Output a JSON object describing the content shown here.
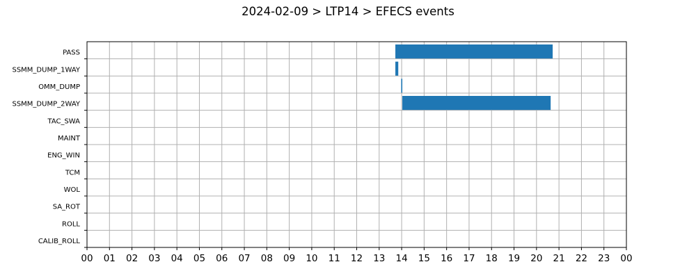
{
  "chart_data": {
    "type": "bar",
    "orientation": "horizontal-timeline",
    "title": "2024-02-09 > LTP14 > EFECS events",
    "xlabel": "",
    "ylabel": "",
    "categories": [
      "PASS",
      "SSMM_DUMP_1WAY",
      "OMM_DUMP",
      "SSMM_DUMP_2WAY",
      "TAC_SWA",
      "MAINT",
      "ENG_WIN",
      "TCM",
      "WOL",
      "SA_ROT",
      "ROLL",
      "CALIB_ROLL"
    ],
    "x_tick_labels": [
      "00",
      "01",
      "02",
      "03",
      "04",
      "05",
      "06",
      "07",
      "08",
      "09",
      "10",
      "11",
      "12",
      "13",
      "14",
      "15",
      "16",
      "17",
      "18",
      "19",
      "20",
      "21",
      "22",
      "23",
      "00"
    ],
    "xlim": [
      0,
      24
    ],
    "x_unit": "hour of day",
    "grid": true,
    "bar_color": "#1f77b4",
    "events": [
      {
        "category": "PASS",
        "start": 13.72,
        "end": 20.72
      },
      {
        "category": "SSMM_DUMP_1WAY",
        "start": 13.72,
        "end": 13.85
      },
      {
        "category": "OMM_DUMP",
        "start": 13.98,
        "end": 14.03
      },
      {
        "category": "SSMM_DUMP_2WAY",
        "start": 14.03,
        "end": 20.63
      }
    ]
  }
}
